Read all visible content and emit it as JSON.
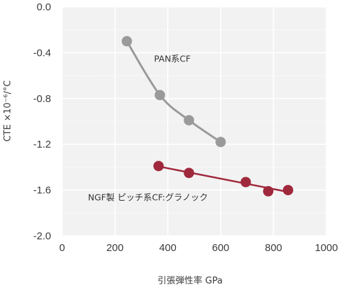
{
  "chart_data": {
    "type": "scatter",
    "xlabel": "引張弾性率 GPa",
    "ylabel": "CTE ×10⁻⁶/°C",
    "xlim": [
      0,
      1000
    ],
    "ylim": [
      -2.0,
      0.0
    ],
    "x_ticks": [
      "0",
      "200",
      "400",
      "600",
      "800",
      "1000"
    ],
    "y_ticks": [
      "0.0",
      "-0.4",
      "-0.8",
      "-1.2",
      "-1.6",
      "-2.0"
    ],
    "grid": true,
    "legend": "none",
    "series": [
      {
        "name": "PAN系CF",
        "color": "#9a9a9a",
        "line": "curve",
        "points": [
          {
            "x": 245,
            "y": -0.3
          },
          {
            "x": 370,
            "y": -0.77
          },
          {
            "x": 480,
            "y": -0.99
          },
          {
            "x": 600,
            "y": -1.18
          }
        ]
      },
      {
        "name": "NGF製 ピッチ系CF:グラノック",
        "color": "#a0283c",
        "line": "straight",
        "points": [
          {
            "x": 365,
            "y": -1.39
          },
          {
            "x": 480,
            "y": -1.45
          },
          {
            "x": 695,
            "y": -1.53
          },
          {
            "x": 780,
            "y": -1.61
          },
          {
            "x": 855,
            "y": -1.6
          }
        ]
      }
    ]
  }
}
